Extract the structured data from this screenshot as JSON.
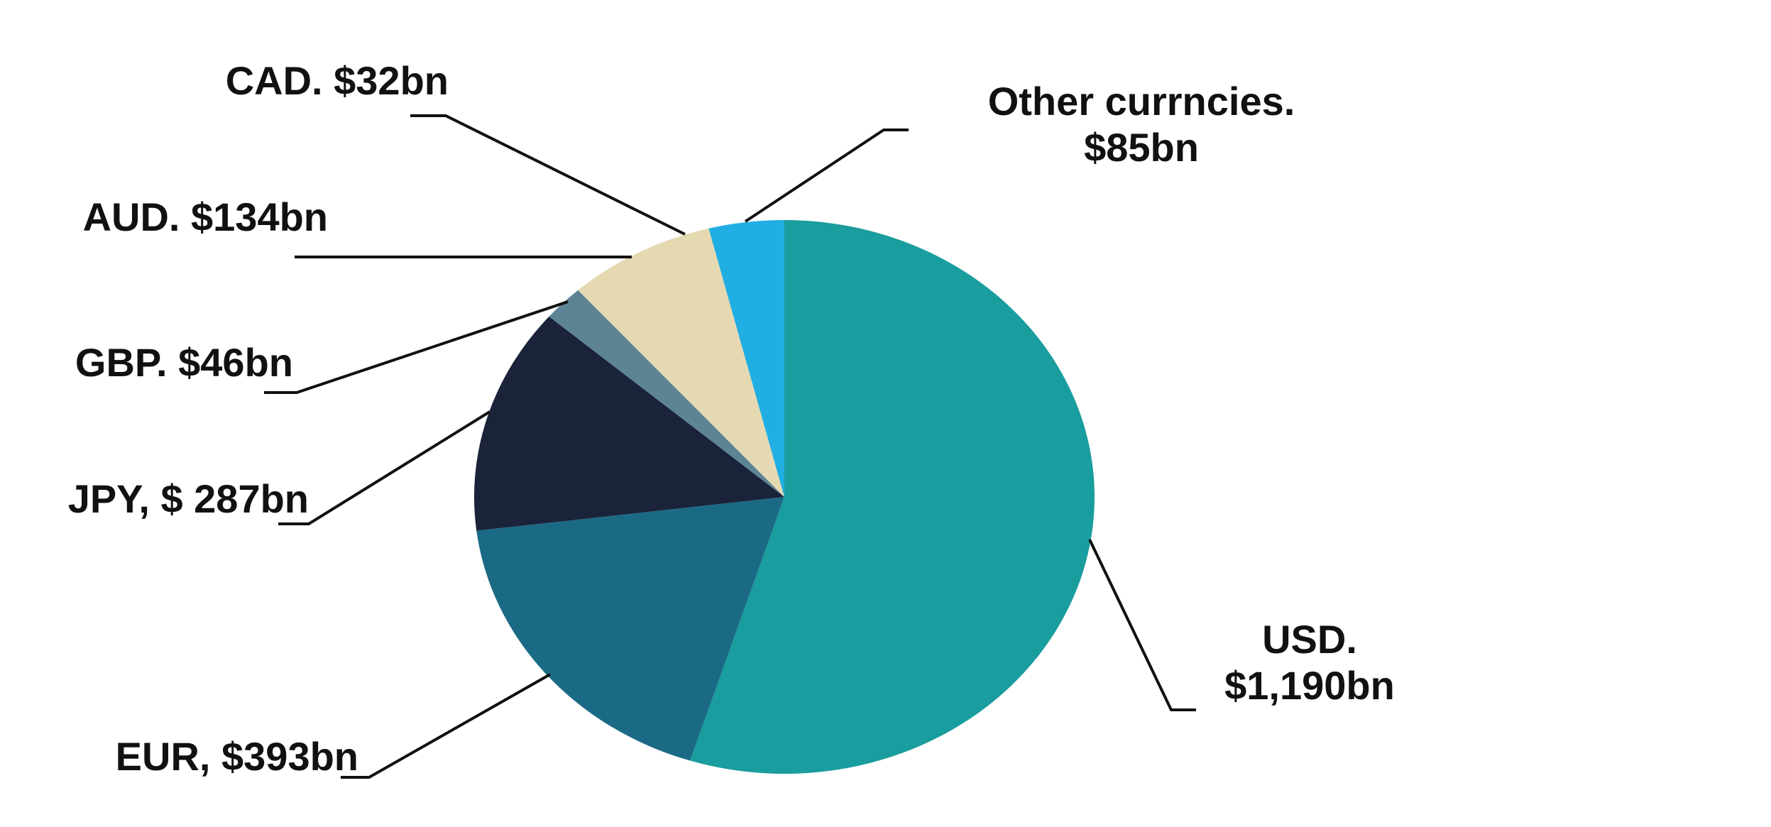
{
  "chart_data": {
    "type": "pie",
    "title": "",
    "slices": [
      {
        "label_lines": [
          "USD.",
          "$1,190bn"
        ],
        "value": 1190,
        "color": "#1a9d9e"
      },
      {
        "label_lines": [
          "EUR, $393bn"
        ],
        "value": 393,
        "color": "#1b6a85"
      },
      {
        "label_lines": [
          "JPY, $ 287bn"
        ],
        "value": 287,
        "color": "#1a233a"
      },
      {
        "label_lines": [
          "GBP. $46bn"
        ],
        "value": 46,
        "color": "#5c8495"
      },
      {
        "label_lines": [
          "AUD. $134bn"
        ],
        "value": 134,
        "color": "#e5d9b2"
      },
      {
        "label_lines": [
          "CAD. $32bn"
        ],
        "value": 32,
        "color": "#e5d9b2"
      },
      {
        "label_lines": [
          "Other currncies.",
          "$85bn"
        ],
        "value": 85,
        "color": "#21aee3"
      }
    ],
    "start_angle": "top",
    "direction": "clockwise",
    "legend": "none (direct labels with leader lines)"
  }
}
